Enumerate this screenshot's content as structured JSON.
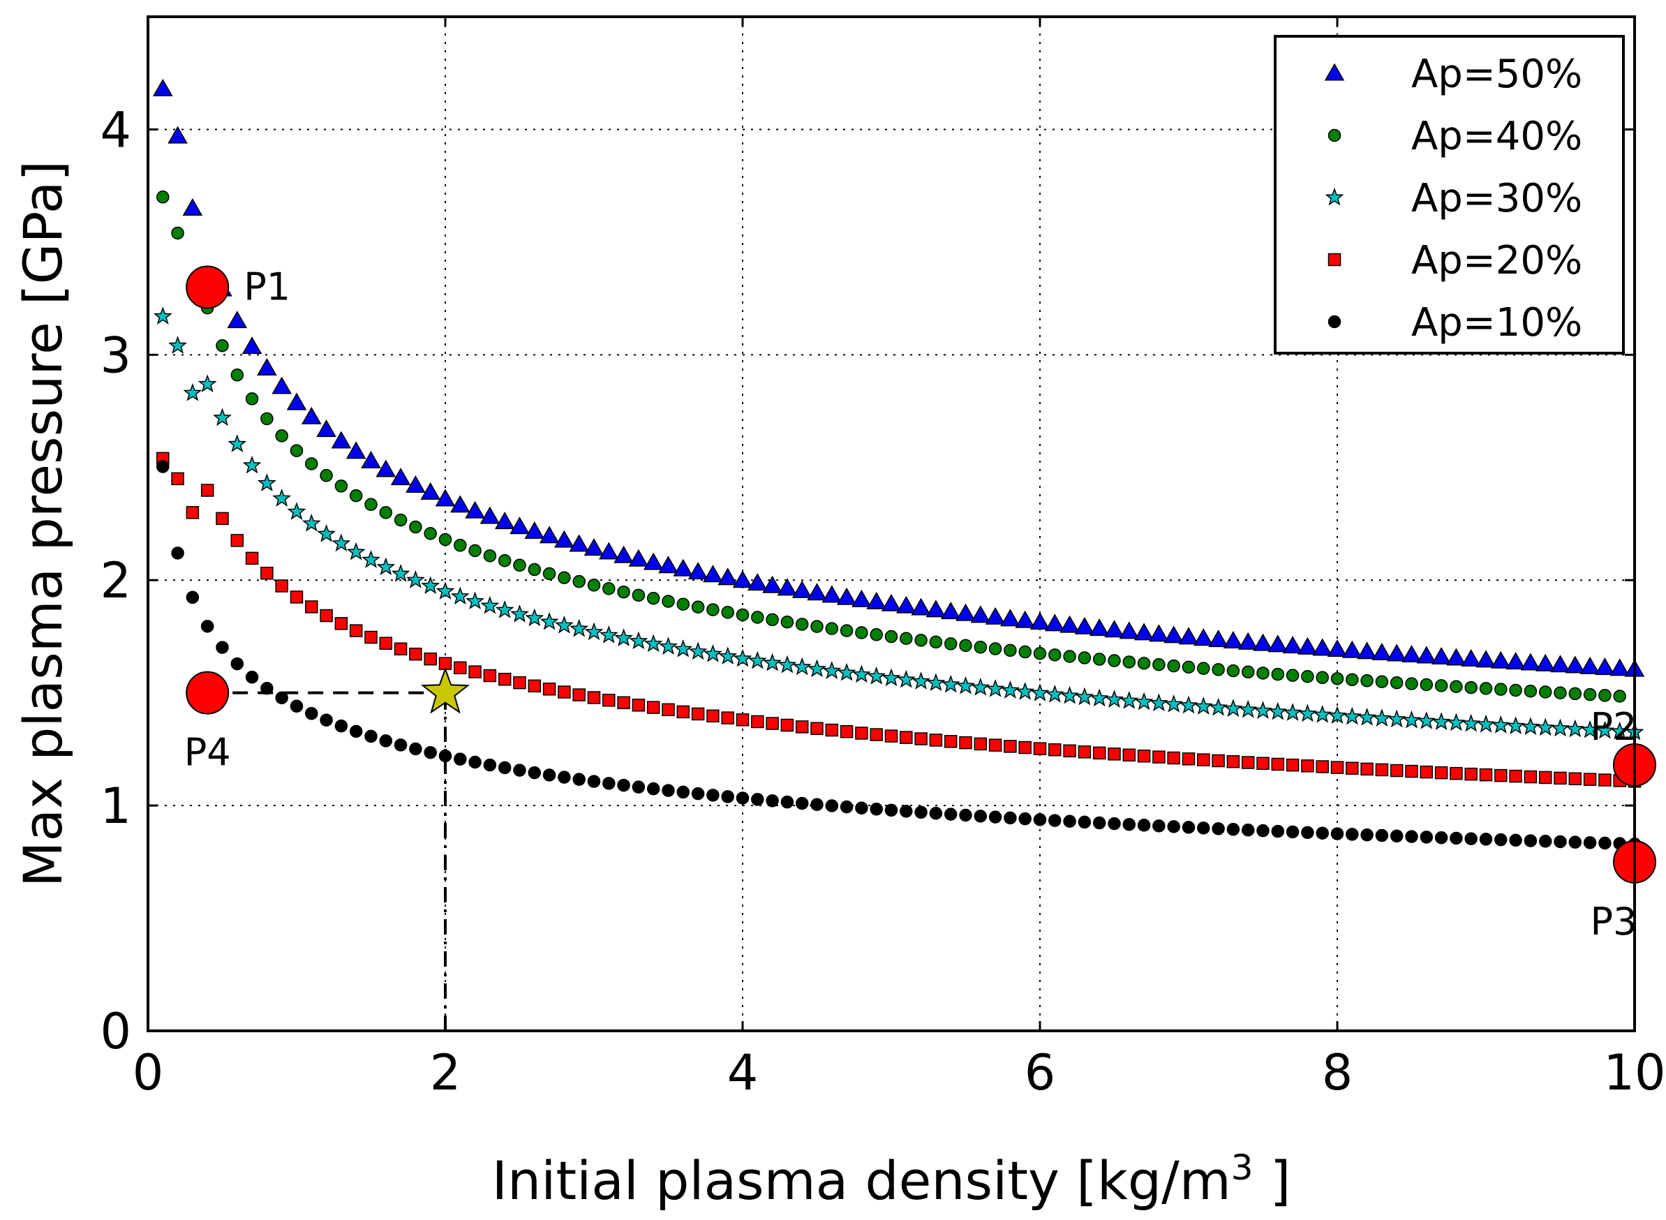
{
  "chart_data": {
    "type": "scatter",
    "xlabel_main": "Initial plasma density [kg/m",
    "xlabel_sup": "3",
    "xlabel_end": " ]",
    "ylabel": "Max plasma pressure [GPa]",
    "xlim": [
      0,
      10
    ],
    "ylim": [
      0,
      4.5
    ],
    "xticks": [
      "0",
      "2",
      "4",
      "6",
      "8",
      "10"
    ],
    "yticks": [
      "0",
      "1",
      "2",
      "3",
      "4"
    ],
    "grid": true,
    "legend_position": "top-right",
    "series": [
      {
        "name": "Ap=50%",
        "marker": "triangle",
        "color": "#0000ee",
        "explicit_points": [
          [
            0.1,
            4.18
          ],
          [
            0.2,
            3.97
          ],
          [
            0.3,
            3.65
          ]
        ],
        "x_start": 0.5,
        "k": 2.36,
        "x_end": 10.0
      },
      {
        "name": "Ap=40%",
        "marker": "circle",
        "color": "#007f00",
        "explicit_points": [
          [
            0.1,
            3.7
          ],
          [
            0.2,
            3.54
          ]
        ],
        "x_start": 0.4,
        "k": 2.18,
        "x_end": 9.9
      },
      {
        "name": "Ap=30%",
        "marker": "star",
        "color": "#00bfbf",
        "explicit_points": [
          [
            0.1,
            3.17
          ],
          [
            0.2,
            3.04
          ],
          [
            0.3,
            2.83
          ]
        ],
        "x_start": 0.4,
        "k": 1.95,
        "x_end": 10.0
      },
      {
        "name": "Ap=20%",
        "marker": "square",
        "color": "#ff0000",
        "explicit_points": [
          [
            0.1,
            2.54
          ],
          [
            0.2,
            2.45
          ],
          [
            0.3,
            2.3
          ]
        ],
        "x_start": 0.4,
        "k": 1.63,
        "x_end": 10.0
      },
      {
        "name": "Ap=10%",
        "marker": "circle",
        "color": "#000000",
        "explicit_points": [],
        "x_start": 0.1,
        "k": 1.22,
        "x_end": 10.0
      }
    ],
    "decay_exponent": 0.24,
    "x_step": 0.1,
    "annotations": [
      {
        "label": "P1",
        "x": 0.4,
        "y": 3.3,
        "label_side": "right"
      },
      {
        "label": "P2",
        "x": 10.0,
        "y": 1.18,
        "label_side": "above"
      },
      {
        "label": "P3",
        "x": 10.0,
        "y": 0.75,
        "label_side": "below"
      },
      {
        "label": "P4",
        "x": 0.4,
        "y": 1.5,
        "label_side": "below"
      }
    ],
    "highlight_star": {
      "x": 2.0,
      "y": 1.5,
      "color": "#c8c800"
    },
    "reference_lines": {
      "y": 1.5,
      "x_from": 0.4,
      "x_to": 2.0,
      "x": 2.0,
      "y_from": 0,
      "y_to": 1.5
    }
  }
}
